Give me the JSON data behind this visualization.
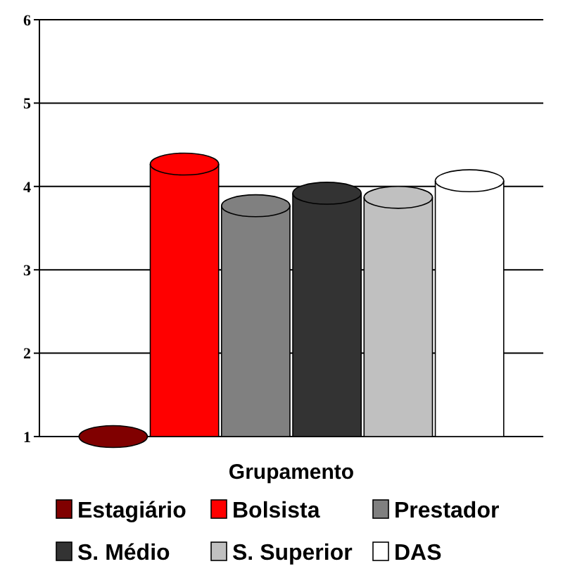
{
  "chart_data": {
    "type": "bar",
    "xlabel": "Grupamento",
    "categories": [
      null
    ],
    "series": [
      {
        "name": "Estagiário",
        "color": "#800000",
        "values": [
          1.0
        ]
      },
      {
        "name": "Bolsista",
        "color": "#ff0000",
        "values": [
          4.4
        ]
      },
      {
        "name": "Prestador",
        "color": "#808080",
        "values": [
          3.9
        ]
      },
      {
        "name": "S. Médio",
        "color": "#333333",
        "values": [
          4.05
        ]
      },
      {
        "name": "S. Superior",
        "color": "#c0c0c0",
        "values": [
          4.0
        ]
      },
      {
        "name": "DAS",
        "color": "#ffffff",
        "values": [
          4.2
        ]
      }
    ],
    "ylim": [
      1,
      6
    ],
    "yticks": [
      1,
      2,
      3,
      4,
      5,
      6
    ],
    "grid": "y",
    "legend": "bottom"
  }
}
